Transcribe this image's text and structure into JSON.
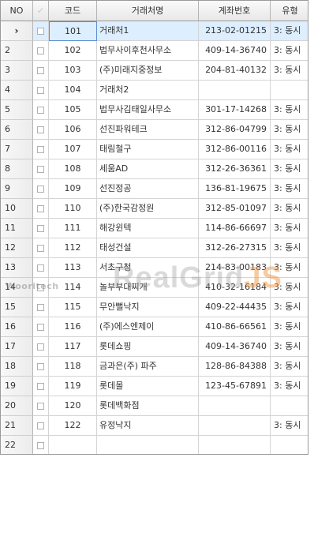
{
  "grid": {
    "columns": {
      "no": "NO",
      "check_icon": "checkmark-icon",
      "code": "코드",
      "name": "거래처명",
      "account": "계좌번호",
      "type": "유형"
    },
    "current_row_indicator": "›",
    "rows": [
      {
        "no": "",
        "code": "101",
        "name": "거래처1",
        "account": "213-02-01215",
        "type": "3: 동시"
      },
      {
        "no": "2",
        "code": "102",
        "name": "법무사이후천사무소",
        "account": "409-14-36740",
        "type": "3: 동시"
      },
      {
        "no": "3",
        "code": "103",
        "name": "(주)미래지중정보",
        "account": "204-81-40132",
        "type": "3: 동시"
      },
      {
        "no": "4",
        "code": "104",
        "name": "거래처2",
        "account": "",
        "type": ""
      },
      {
        "no": "5",
        "code": "105",
        "name": "법무사김태일사무소",
        "account": "301-17-14268",
        "type": "3: 동시"
      },
      {
        "no": "6",
        "code": "106",
        "name": "선진파워테크",
        "account": "312-86-04799",
        "type": "3: 동시"
      },
      {
        "no": "7",
        "code": "107",
        "name": "태림철구",
        "account": "312-86-00116",
        "type": "3: 동시"
      },
      {
        "no": "8",
        "code": "108",
        "name": "세움AD",
        "account": "312-26-36361",
        "type": "3: 동시"
      },
      {
        "no": "9",
        "code": "109",
        "name": "선진정공",
        "account": "136-81-19675",
        "type": "3: 동시"
      },
      {
        "no": "10",
        "code": "110",
        "name": "(주)한국감정원",
        "account": "312-85-01097",
        "type": "3: 동시"
      },
      {
        "no": "11",
        "code": "111",
        "name": "해강윈텍",
        "account": "114-86-66697",
        "type": "3: 동시"
      },
      {
        "no": "12",
        "code": "112",
        "name": "태성건설",
        "account": "312-26-27315",
        "type": "3: 동시"
      },
      {
        "no": "13",
        "code": "113",
        "name": "서초구청",
        "account": "214-83-00183",
        "type": "3: 동시"
      },
      {
        "no": "14",
        "code": "114",
        "name": "놀부부대찌개",
        "account": "410-32-16184",
        "type": "3: 동시"
      },
      {
        "no": "15",
        "code": "115",
        "name": "무안뻘낙지",
        "account": "409-22-44435",
        "type": "3: 동시"
      },
      {
        "no": "16",
        "code": "116",
        "name": "(주)에스엔제이",
        "account": "410-86-66561",
        "type": "3: 동시"
      },
      {
        "no": "17",
        "code": "117",
        "name": "롯데쇼핑",
        "account": "409-14-36740",
        "type": "3: 동시"
      },
      {
        "no": "18",
        "code": "118",
        "name": "금과은(주) 파주",
        "account": "128-86-84388",
        "type": "3: 동시"
      },
      {
        "no": "19",
        "code": "119",
        "name": "롯데몰",
        "account": "123-45-67891",
        "type": "3: 동시"
      },
      {
        "no": "20",
        "code": "120",
        "name": "롯데백화점",
        "account": "",
        "type": ""
      },
      {
        "no": "21",
        "code": "122",
        "name": "유정낙지",
        "account": "",
        "type": "3: 동시"
      },
      {
        "no": "22",
        "code": "",
        "name": "",
        "account": "",
        "type": ""
      }
    ]
  },
  "watermark": {
    "company": "Wooritech",
    "product_main": "RealGrid",
    "product_suffix": "JS"
  }
}
